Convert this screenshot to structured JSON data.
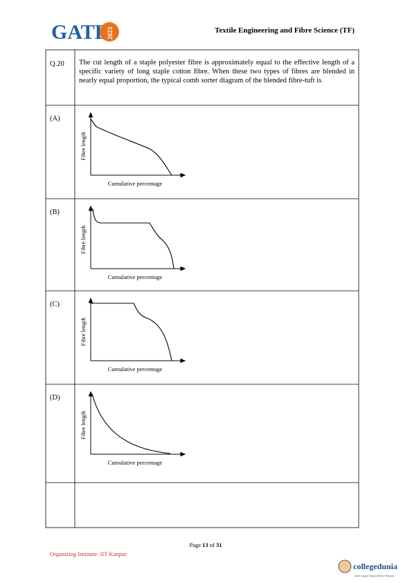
{
  "header": {
    "logo": "GATE",
    "logo_year": "2023",
    "title": "Textile Engineering and Fibre Science (TF)"
  },
  "question": {
    "number": "Q.20",
    "text": "The cut length of a staple polyester fibre is approximately equal to the effective length of a specific variety of long staple cotton fibre. When these two types of fibres are blended in nearly equal proportion, the typical comb sorter diagram of the blended fibre-tuft is"
  },
  "options": [
    {
      "label": "(A)",
      "y_axis": "Fibre length",
      "x_axis": "Cumulative percentage"
    },
    {
      "label": "(B)",
      "y_axis": "Fibre length",
      "x_axis": "Cumulative percentage"
    },
    {
      "label": "(C)",
      "y_axis": "Fibre length",
      "x_axis": "Cumulative percentage"
    },
    {
      "label": "(D)",
      "y_axis": "Fibre length",
      "x_axis": "Cumulative percentage"
    }
  ],
  "footer": {
    "page_prefix": "Page",
    "page": "13",
    "page_sep": "of",
    "page_total": "31",
    "institute": "Organizing Institute: IIT Kanpur",
    "brand": "collegedunia",
    "tagline": "India's largest Student Review Platform"
  }
}
